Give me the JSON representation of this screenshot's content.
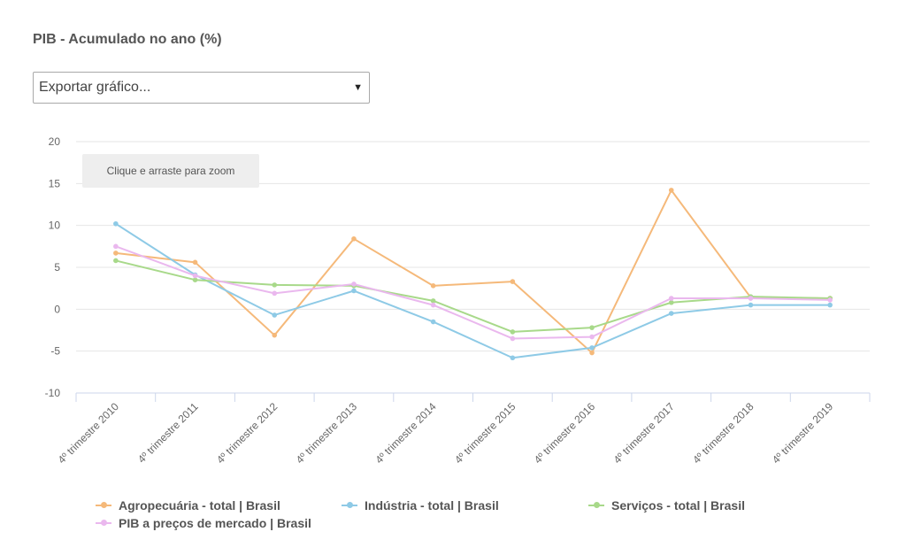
{
  "header": {
    "title": "PIB - Acumulado no ano (%)"
  },
  "export": {
    "label": "Exportar gráfico...",
    "arrow": "▼"
  },
  "zoom_hint": "Clique e arraste para zoom",
  "chart_data": {
    "type": "line",
    "title": "PIB - Acumulado no ano (%)",
    "xlabel": "",
    "ylabel": "",
    "ylim": [
      -10,
      20
    ],
    "yticks": [
      20,
      15,
      10,
      5,
      0,
      -5,
      -10
    ],
    "ytick_labels": [
      "20",
      "15",
      "10",
      "5",
      "0",
      "-5",
      "-10"
    ],
    "grid": true,
    "legend_position": "bottom",
    "categories": [
      "4º trimestre 2010",
      "4º trimestre 2011",
      "4º trimestre 2012",
      "4º trimestre 2013",
      "4º trimestre 2014",
      "4º trimestre 2015",
      "4º trimestre 2016",
      "4º trimestre 2017",
      "4º trimestre 2018",
      "4º trimestre 2019"
    ],
    "series": [
      {
        "name": "Agropecuária - total | Brasil",
        "color": "#f5b97a",
        "values": [
          6.7,
          5.6,
          -3.1,
          8.4,
          2.8,
          3.3,
          -5.2,
          14.2,
          1.4,
          1.3
        ]
      },
      {
        "name": "Indústria - total | Brasil",
        "color": "#8ecae6",
        "values": [
          10.2,
          4.1,
          -0.7,
          2.2,
          -1.5,
          -5.8,
          -4.6,
          -0.5,
          0.5,
          0.5
        ]
      },
      {
        "name": "Serviços - total | Brasil",
        "color": "#a8d98a",
        "values": [
          5.8,
          3.5,
          2.9,
          2.8,
          1.0,
          -2.7,
          -2.2,
          0.8,
          1.5,
          1.3
        ]
      },
      {
        "name": "PIB a preços de mercado | Brasil",
        "color": "#eab8ee",
        "values": [
          7.5,
          4.0,
          1.9,
          3.0,
          0.5,
          -3.5,
          -3.3,
          1.3,
          1.3,
          1.1
        ]
      }
    ]
  }
}
